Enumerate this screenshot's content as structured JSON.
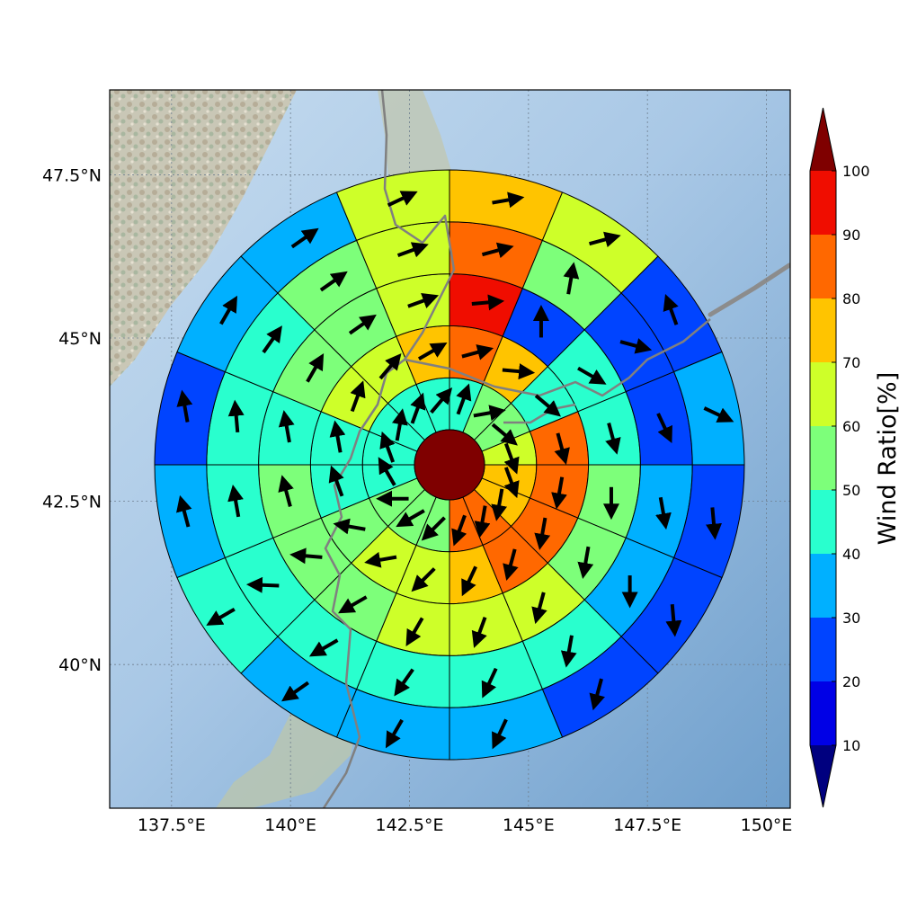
{
  "map": {
    "lon_ticks": [
      "137.5°E",
      "140°E",
      "142.5°E",
      "145°E",
      "147.5°E",
      "150°E"
    ],
    "lat_ticks": [
      "47.5°N",
      "45°N",
      "42.5°N",
      "40°N"
    ],
    "lon_tick_values": [
      137.5,
      140,
      142.5,
      145,
      147.5,
      150
    ],
    "lat_tick_values": [
      47.5,
      45,
      42.5,
      40
    ],
    "lon_range": [
      136.2,
      150.5
    ],
    "lat_range": [
      37.8,
      48.8
    ],
    "grid": "dotted",
    "background": "shaded-relief",
    "center_lon": 143.3,
    "center_lat": 43.3
  },
  "colorbar": {
    "label": "Wind Ratio[%]",
    "ticks": [
      "10",
      "20",
      "30",
      "40",
      "50",
      "60",
      "70",
      "80",
      "90",
      "100"
    ],
    "levels": [
      0,
      10,
      20,
      30,
      40,
      50,
      60,
      70,
      80,
      90,
      100
    ],
    "colors": [
      "#00007f",
      "#0000e6",
      "#0044ff",
      "#00b0ff",
      "#29ffce",
      "#7dff7a",
      "#ceff29",
      "#ffc400",
      "#ff6800",
      "#f00d00",
      "#7f0000"
    ],
    "extend": "both"
  },
  "chart_data": {
    "type": "polar-sector-map",
    "rings": 5,
    "sectors": 16,
    "sector_order": "clockwise from north",
    "center_value": 100,
    "ratio": [
      [
        45,
        55,
        55,
        65,
        75,
        75,
        85,
        85,
        55,
        55,
        55,
        45,
        45,
        45,
        45,
        45
      ],
      [
        85,
        75,
        45,
        85,
        85,
        85,
        85,
        75,
        65,
        65,
        55,
        45,
        45,
        65,
        65,
        75
      ],
      [
        95,
        25,
        45,
        45,
        55,
        55,
        65,
        65,
        65,
        55,
        55,
        55,
        45,
        55,
        55,
        65
      ],
      [
        85,
        55,
        25,
        25,
        35,
        35,
        45,
        45,
        45,
        45,
        45,
        45,
        45,
        45,
        55,
        65
      ],
      [
        75,
        65,
        25,
        35,
        25,
        25,
        25,
        35,
        35,
        35,
        45,
        35,
        25,
        35,
        35,
        65
      ]
    ],
    "wind_direction_deg": [
      [
        20,
        80,
        130,
        160,
        160,
        190,
        190,
        200,
        225,
        240,
        270,
        330,
        340,
        10,
        20,
        40
      ],
      [
        75,
        95,
        130,
        165,
        190,
        190,
        195,
        205,
        225,
        260,
        280,
        340,
        350,
        20,
        40,
        60
      ],
      [
        85,
        0,
        120,
        165,
        180,
        190,
        195,
        200,
        210,
        240,
        275,
        345,
        350,
        30,
        55,
        70
      ],
      [
        75,
        10,
        105,
        155,
        170,
        180,
        190,
        205,
        215,
        240,
        272,
        350,
        355,
        35,
        55,
        70
      ],
      [
        80,
        75,
        340,
        115,
        175,
        175,
        195,
        205,
        210,
        235,
        240,
        345,
        350,
        30,
        55,
        65
      ]
    ]
  }
}
